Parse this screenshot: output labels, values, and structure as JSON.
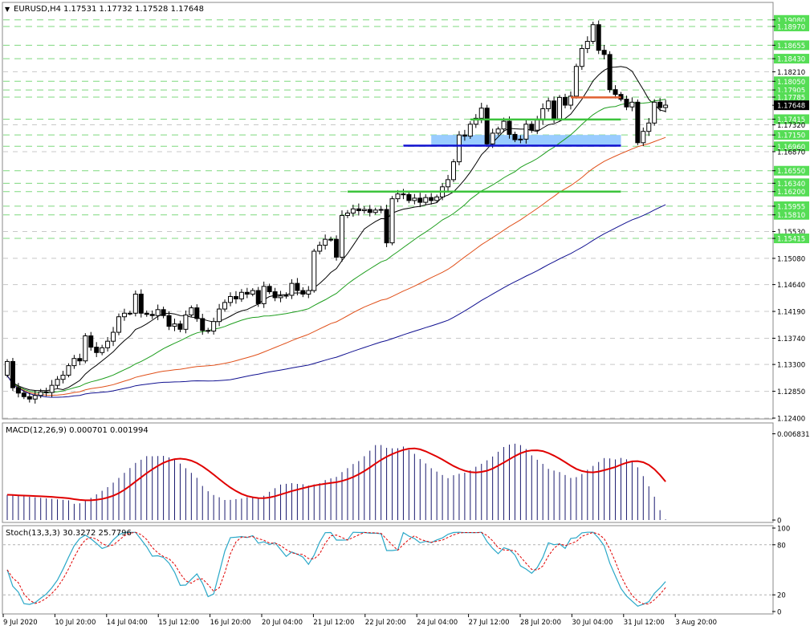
{
  "header": {
    "symbol": "EURUSD,H4",
    "ohlc": "1.17531 1.17732 1.17528 1.17648"
  },
  "indicators": {
    "macd_label": "MACD(12,26,9) 0.000701 0.001994",
    "stoch_label": "Stoch(13,3,3) 30.3272 25.7796"
  },
  "colors": {
    "bull_candle": "#ffffff",
    "bear_candle": "#000000",
    "ma_black": "#000000",
    "ma_green": "#1e9e1e",
    "ma_orange": "#e0501a",
    "ma_blue": "#101090",
    "level_green": "#3cc43c",
    "level_blue": "#1010d0",
    "level_red": "#e06030",
    "zone_fill": "#99ccff",
    "dashed_level": "#7fd87f",
    "macd_bars": "#1a1a6e",
    "macd_signal": "#e00000",
    "stoch_main": "#2aa8c8",
    "stoch_signal": "#e00000"
  },
  "chart_data": {
    "type": "candlestick",
    "price_axis": {
      "ticks": [
        "1.19080",
        "1.18970",
        "1.18655",
        "1.18430",
        "1.18210",
        "1.18050",
        "1.17905",
        "1.17785",
        "1.17648",
        "1.17415",
        "1.17320",
        "1.17150",
        "1.16960",
        "1.16870",
        "1.16550",
        "1.16340",
        "1.16200",
        "1.15955",
        "1.15810",
        "1.15530",
        "1.15415",
        "1.15080",
        "1.14640",
        "1.14190",
        "1.13740",
        "1.13300",
        "1.12850",
        "1.12400"
      ],
      "highlighted_ticks": [
        "1.19080",
        "1.18970",
        "1.18655",
        "1.18430",
        "1.18050",
        "1.17905",
        "1.17785",
        "1.17415",
        "1.17150",
        "1.16960",
        "1.16550",
        "1.16340",
        "1.16200",
        "1.15955",
        "1.15810",
        "1.15415"
      ],
      "current_price": "1.17648",
      "ylim": [
        1.124,
        1.1936
      ]
    },
    "time_axis": {
      "labels": [
        "9 Jul 2020",
        "10 Jul 20:00",
        "14 Jul 04:00",
        "15 Jul 12:00",
        "16 Jul 20:00",
        "20 Jul 04:00",
        "21 Jul 12:00",
        "22 Jul 20:00",
        "24 Jul 04:00",
        "27 Jul 12:00",
        "28 Jul 20:00",
        "30 Jul 04:00",
        "31 Jul 12:00",
        "3 Aug 20:00"
      ]
    },
    "dashed_levels": [
      1.1908,
      1.1897,
      1.18655,
      1.1843,
      1.1805,
      1.17905,
      1.17785,
      1.17415,
      1.1715,
      1.1696,
      1.1655,
      1.1634,
      1.162,
      1.15955,
      1.1581,
      1.15415
    ],
    "horizontal_levels": [
      {
        "price": 1.1778,
        "from": 101,
        "to": 110,
        "color_key": "level_red"
      },
      {
        "price": 1.1741,
        "from": 83,
        "to": 110,
        "color_key": "level_green"
      },
      {
        "price": 1.1697,
        "from": 71,
        "to": 110,
        "color_key": "level_blue"
      },
      {
        "price": 1.162,
        "from": 61,
        "to": 110,
        "color_key": "level_green"
      }
    ],
    "zone": {
      "from": 76,
      "to": 110,
      "price_top": 1.1715,
      "price_bottom": 1.1697
    },
    "close": [
      1.1335,
      1.1291,
      1.1282,
      1.1276,
      1.1272,
      1.1278,
      1.1284,
      1.1283,
      1.1295,
      1.1305,
      1.1312,
      1.1328,
      1.134,
      1.1336,
      1.1378,
      1.1359,
      1.135,
      1.1358,
      1.1369,
      1.1384,
      1.141,
      1.1416,
      1.1416,
      1.1448,
      1.1416,
      1.1414,
      1.1412,
      1.1422,
      1.1412,
      1.1394,
      1.1398,
      1.1389,
      1.1413,
      1.1425,
      1.1407,
      1.1387,
      1.1386,
      1.1402,
      1.1423,
      1.1434,
      1.1444,
      1.144,
      1.1451,
      1.1448,
      1.1454,
      1.1432,
      1.1461,
      1.1452,
      1.1442,
      1.1445,
      1.1446,
      1.1466,
      1.1454,
      1.1448,
      1.1454,
      1.152,
      1.153,
      1.154,
      1.154,
      1.151,
      1.158,
      1.1584,
      1.1591,
      1.1588,
      1.159,
      1.1585,
      1.1589,
      1.159,
      1.1534,
      1.1608,
      1.1616,
      1.1615,
      1.1605,
      1.1609,
      1.1602,
      1.161,
      1.1605,
      1.1611,
      1.1628,
      1.164,
      1.167,
      1.1715,
      1.1713,
      1.1733,
      1.1743,
      1.176,
      1.17,
      1.1718,
      1.1725,
      1.1738,
      1.1716,
      1.1707,
      1.1708,
      1.1733,
      1.1723,
      1.174,
      1.1759,
      1.1772,
      1.1742,
      1.1778,
      1.1765,
      1.178,
      1.183,
      1.186,
      1.1872,
      1.19,
      1.1857,
      1.185,
      1.1791,
      1.1783,
      1.1775,
      1.1762,
      1.177,
      1.1702,
      1.1721,
      1.1735,
      1.177,
      1.1761,
      1.1765
    ]
  },
  "macd_data": {
    "ylim": [
      0,
      0.0075
    ],
    "ticks": [
      "0.006831",
      "0"
    ],
    "histogram_peak_index": 86
  },
  "stoch_data": {
    "ticks": [
      "100",
      "80",
      "20",
      "0"
    ],
    "ylim": [
      0,
      100
    ]
  }
}
